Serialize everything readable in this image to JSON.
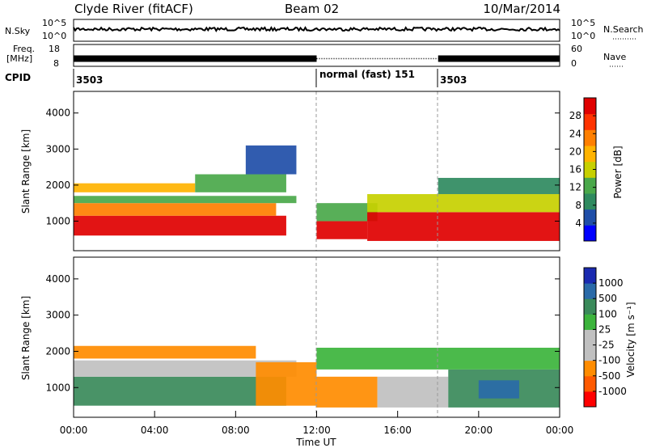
{
  "header": {
    "station": "Clyde River (fitACF)",
    "beam": "Beam 02",
    "date": "10/Mar/2014"
  },
  "left_labels": {
    "nsky": "N.Sky",
    "freq_line1": "Freq.",
    "freq_line2": "[MHz]",
    "cpid": "CPID"
  },
  "right_labels": {
    "nsearch": "N.Search",
    "nave": "Nave"
  },
  "colors": {
    "power": [
      "#0000ff",
      "#1f4ea8",
      "#2f8a5f",
      "#4aa84a",
      "#c7d000",
      "#ffb300",
      "#ff7f00",
      "#ff3300",
      "#e00000"
    ],
    "velocity": [
      "#ff0000",
      "#ff5a00",
      "#ff8c00",
      "#c0c0c0",
      "#c0c0c0",
      "#3cb43c",
      "#3a8a5a",
      "#2a6aa8",
      "#1a2ab0"
    ],
    "ground_scatter": "#c0c0c0"
  },
  "chart_data": [
    {
      "type": "line",
      "panel": "noise",
      "left_label": "N.Sky",
      "right_label": "N.Search",
      "yticks_left": [
        "10^5",
        "10^0"
      ],
      "yticks_right": [
        "10^5",
        "10^0"
      ]
    },
    {
      "type": "line",
      "panel": "frequency",
      "left_label": "Freq. [MHz]",
      "right_label": "Nave",
      "yticks_left": [
        18,
        8
      ],
      "yticks_right": [
        60,
        0
      ],
      "segments": [
        {
          "start_hour": 0,
          "end_hour": 12,
          "freq_mhz": 11.5,
          "style": "solid"
        },
        {
          "start_hour": 12,
          "end_hour": 18,
          "freq_mhz": 11.5,
          "style": "dotted"
        },
        {
          "start_hour": 18,
          "end_hour": 24,
          "freq_mhz": 11.5,
          "style": "solid"
        }
      ]
    },
    {
      "type": "table",
      "panel": "cpid",
      "entries": [
        {
          "start_hour": 0,
          "label": "3503"
        },
        {
          "start_hour": 12,
          "label": "normal (fast) 151"
        },
        {
          "start_hour": 18,
          "label": "3503"
        }
      ]
    },
    {
      "type": "heatmap",
      "panel": "power",
      "ylabel": "Slant Range [km]",
      "ylim": [
        180,
        4600
      ],
      "yticks": [
        1000,
        2000,
        3000,
        4000
      ],
      "colorbar_label": "Power [dB]",
      "colorbar_ticks": [
        4,
        8,
        12,
        16,
        20,
        24,
        28
      ],
      "colorbar_range": [
        0,
        32
      ],
      "bands": [
        {
          "start_hour": 0,
          "end_hour": 10.5,
          "low_km": 600,
          "high_km": 1150,
          "level": 8
        },
        {
          "start_hour": 0,
          "end_hour": 10,
          "low_km": 1150,
          "high_km": 1500,
          "level": 6
        },
        {
          "start_hour": 0,
          "end_hour": 11,
          "low_km": 1500,
          "high_km": 1700,
          "level": 3
        },
        {
          "start_hour": 0,
          "end_hour": 6,
          "low_km": 1800,
          "high_km": 2050,
          "level": 5
        },
        {
          "start_hour": 6,
          "end_hour": 10.5,
          "low_km": 1800,
          "high_km": 2300,
          "level": 3
        },
        {
          "start_hour": 8.5,
          "end_hour": 11,
          "low_km": 2300,
          "high_km": 3100,
          "level": 1
        },
        {
          "start_hour": 12,
          "end_hour": 14.5,
          "low_km": 500,
          "high_km": 1000,
          "level": 8
        },
        {
          "start_hour": 12,
          "end_hour": 15,
          "low_km": 1000,
          "high_km": 1500,
          "level": 3
        },
        {
          "start_hour": 14.5,
          "end_hour": 24,
          "low_km": 450,
          "high_km": 1250,
          "level": 8
        },
        {
          "start_hour": 14.5,
          "end_hour": 24,
          "low_km": 1250,
          "high_km": 1750,
          "level": 4
        },
        {
          "start_hour": 18,
          "end_hour": 24,
          "low_km": 1750,
          "high_km": 2200,
          "level": 2
        }
      ]
    },
    {
      "type": "heatmap",
      "panel": "velocity",
      "ylabel": "Slant Range [km]",
      "xlabel": "Time UT",
      "ylim": [
        180,
        4600
      ],
      "yticks": [
        1000,
        2000,
        3000,
        4000
      ],
      "xticks": [
        "00:00",
        "04:00",
        "08:00",
        "12:00",
        "16:00",
        "20:00",
        "00:00"
      ],
      "colorbar_label": "Velocity [m s⁻¹]",
      "colorbar_ticks": [
        -1000,
        -500,
        -100,
        -25,
        25,
        100,
        500,
        1000
      ],
      "bands": [
        {
          "start_hour": 0,
          "end_hour": 10.5,
          "low_km": 500,
          "high_km": 1300,
          "level": 6
        },
        {
          "start_hour": 0,
          "end_hour": 11,
          "low_km": 1300,
          "high_km": 1750,
          "level": 3
        },
        {
          "start_hour": 0,
          "end_hour": 9,
          "low_km": 1800,
          "high_km": 2150,
          "level": 2
        },
        {
          "start_hour": 9,
          "end_hour": 12,
          "low_km": 500,
          "high_km": 1700,
          "level": 2
        },
        {
          "start_hour": 12,
          "end_hour": 15,
          "low_km": 450,
          "high_km": 1300,
          "level": 2
        },
        {
          "start_hour": 15,
          "end_hour": 18.5,
          "low_km": 450,
          "high_km": 1300,
          "level": 3
        },
        {
          "start_hour": 18.5,
          "end_hour": 24,
          "low_km": 450,
          "high_km": 1500,
          "level": 6
        },
        {
          "start_hour": 20,
          "end_hour": 22,
          "low_km": 700,
          "high_km": 1200,
          "level": 7
        },
        {
          "start_hour": 12,
          "end_hour": 24,
          "low_km": 1500,
          "high_km": 2100,
          "level": 5
        }
      ]
    }
  ]
}
